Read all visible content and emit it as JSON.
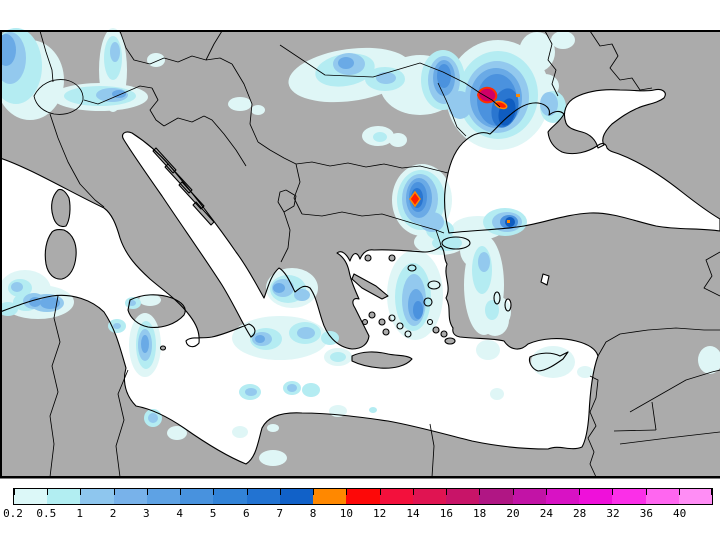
{
  "map": {
    "land_color": "#ababab",
    "sea_color": "#ffffff",
    "outline_color": "#000000",
    "frame_color": "#000000",
    "precip_level_colors": {
      "l1": "#dff6f6",
      "l2": "#b4ecf2",
      "l3": "#93c9ee",
      "l4": "#6aaae6",
      "l5": "#4b92de",
      "l6": "#2a76d0",
      "l7": "#0f5cc0"
    },
    "hotspot_colors": {
      "extreme_fill": "#cf0068",
      "heavy_fill": "#ff1e00",
      "ring": "#ff8800"
    }
  },
  "colorbar": {
    "border_color": "#000000",
    "tick_color": "#000000",
    "label_color": "#000000",
    "stops": [
      {
        "label": "0.2",
        "color": "#dcf8f8"
      },
      {
        "label": "0.5",
        "color": "#b2eef2"
      },
      {
        "label": "1",
        "color": "#8ec6ee"
      },
      {
        "label": "2",
        "color": "#78b2ea"
      },
      {
        "label": "3",
        "color": "#5ea2e4"
      },
      {
        "label": "4",
        "color": "#4892de"
      },
      {
        "label": "5",
        "color": "#3283d8"
      },
      {
        "label": "6",
        "color": "#2273d2"
      },
      {
        "label": "7",
        "color": "#1161c8"
      },
      {
        "label": "8",
        "color": "#ff8800"
      },
      {
        "label": "10",
        "color": "#fd0808"
      },
      {
        "label": "12",
        "color": "#f3103c"
      },
      {
        "label": "14",
        "color": "#e01452"
      },
      {
        "label": "16",
        "color": "#c81468"
      },
      {
        "label": "18",
        "color": "#b01684"
      },
      {
        "label": "20",
        "color": "#c213a6"
      },
      {
        "label": "24",
        "color": "#d812c4"
      },
      {
        "label": "28",
        "color": "#ef10da"
      },
      {
        "label": "32",
        "color": "#fb2fe8"
      },
      {
        "label": "36",
        "color": "#ff66f0"
      },
      {
        "label": "40",
        "color": "#ff8df5"
      }
    ]
  }
}
